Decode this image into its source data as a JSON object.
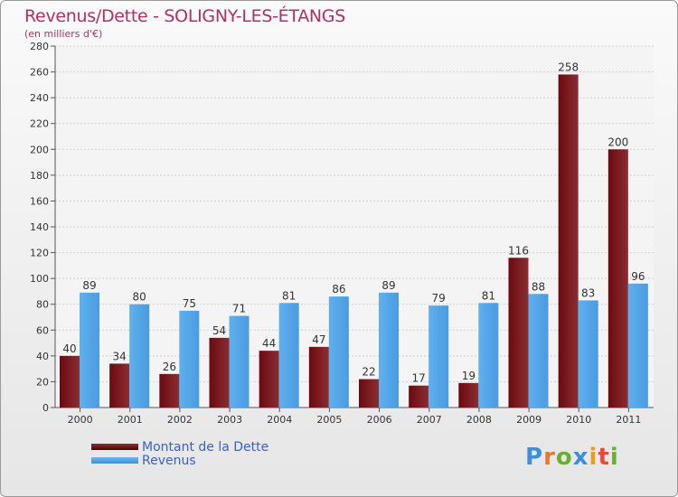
{
  "header": {
    "title": "Revenus/Dette - SOLIGNY-LES-ÉTANGS",
    "subtitle": "(en milliers d'€)"
  },
  "colors": {
    "dette": "#6b0a10",
    "dette_light": "#8a2e33",
    "revenus": "#4a9be0",
    "revenus_light": "#5fb0ee",
    "axis_text": "#333333",
    "grid": "#d0d0d0"
  },
  "chart_data": {
    "type": "bar",
    "title": "Revenus/Dette - SOLIGNY-LES-ÉTANGS",
    "subtitle": "(en milliers d'€)",
    "categories": [
      "2000",
      "2001",
      "2002",
      "2003",
      "2004",
      "2005",
      "2006",
      "2007",
      "2008",
      "2009",
      "2010",
      "2011"
    ],
    "series": [
      {
        "name": "Montant de la Dette",
        "values": [
          40,
          34,
          26,
          54,
          44,
          47,
          22,
          17,
          19,
          116,
          258,
          200
        ]
      },
      {
        "name": "Revenus",
        "values": [
          89,
          80,
          75,
          71,
          81,
          86,
          89,
          79,
          81,
          88,
          83,
          96
        ]
      }
    ],
    "ylim": [
      0,
      280
    ],
    "yticks": [
      0,
      20,
      40,
      60,
      80,
      100,
      120,
      140,
      160,
      180,
      200,
      220,
      240,
      260,
      280
    ],
    "grid": true,
    "legend_position": "bottom-left"
  },
  "legend": {
    "items": [
      {
        "label": "Montant de la Dette"
      },
      {
        "label": "Revenus"
      }
    ]
  },
  "brand": {
    "letters": [
      "P",
      "r",
      "o",
      "x",
      "i",
      "t",
      "i"
    ]
  }
}
